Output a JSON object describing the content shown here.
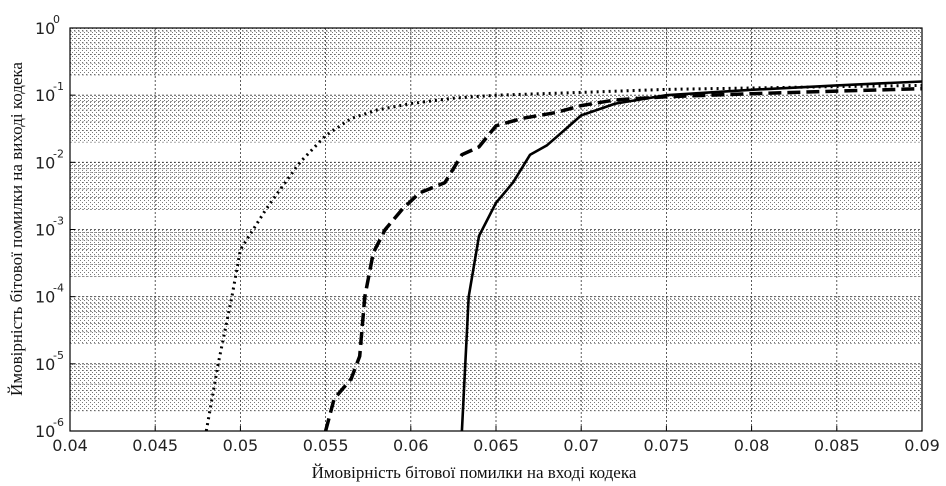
{
  "chart_data": {
    "type": "line",
    "xlabel": "Ймовірність бітової помилки на вході кодека",
    "ylabel": "Ймовірність бітової помилки на виході кодека",
    "xlim": [
      0.04,
      0.09
    ],
    "ylim": [
      1e-06,
      1
    ],
    "yscale": "log",
    "grid": true,
    "x_ticks": [
      "0.04",
      "0.045",
      "0.05",
      "0.055",
      "0.06",
      "0.065",
      "0.07",
      "0.075",
      "0.08",
      "0.085",
      "0.09"
    ],
    "y_tick_base": "10",
    "y_tick_exponents": [
      "-6",
      "-5",
      "-4",
      "-3",
      "-2",
      "-1",
      "0"
    ],
    "series": [
      {
        "style": "dotted",
        "color": "#000000",
        "points": [
          [
            0.048,
            1e-06
          ],
          [
            0.0487,
            1e-05
          ],
          [
            0.0495,
            0.0001
          ],
          [
            0.05,
            0.0005
          ],
          [
            0.0515,
            0.002
          ],
          [
            0.0525,
            0.0045
          ],
          [
            0.0535,
            0.01
          ],
          [
            0.055,
            0.025
          ],
          [
            0.0565,
            0.045
          ],
          [
            0.058,
            0.06
          ],
          [
            0.06,
            0.075
          ],
          [
            0.0625,
            0.09
          ],
          [
            0.065,
            0.1
          ],
          [
            0.07,
            0.11
          ],
          [
            0.075,
            0.122
          ],
          [
            0.08,
            0.128
          ],
          [
            0.085,
            0.134
          ],
          [
            0.09,
            0.14
          ]
        ]
      },
      {
        "style": "dashed",
        "color": "#000000",
        "points": [
          [
            0.055,
            1e-06
          ],
          [
            0.0555,
            3e-06
          ],
          [
            0.0565,
            6e-06
          ],
          [
            0.057,
            1.3e-05
          ],
          [
            0.0573,
            0.0001
          ],
          [
            0.0578,
            0.00045
          ],
          [
            0.0585,
            0.001
          ],
          [
            0.0595,
            0.002
          ],
          [
            0.0605,
            0.0035
          ],
          [
            0.062,
            0.005
          ],
          [
            0.063,
            0.013
          ],
          [
            0.064,
            0.017
          ],
          [
            0.065,
            0.035
          ],
          [
            0.0665,
            0.045
          ],
          [
            0.0685,
            0.055
          ],
          [
            0.07,
            0.07
          ],
          [
            0.072,
            0.085
          ],
          [
            0.075,
            0.095
          ],
          [
            0.08,
            0.105
          ],
          [
            0.085,
            0.115
          ],
          [
            0.09,
            0.125
          ]
        ]
      },
      {
        "style": "solid",
        "color": "#000000",
        "points": [
          [
            0.063,
            1e-06
          ],
          [
            0.0634,
            0.0001
          ],
          [
            0.064,
            0.0008
          ],
          [
            0.065,
            0.0025
          ],
          [
            0.066,
            0.005
          ],
          [
            0.067,
            0.013
          ],
          [
            0.068,
            0.018
          ],
          [
            0.069,
            0.03
          ],
          [
            0.07,
            0.05
          ],
          [
            0.072,
            0.075
          ],
          [
            0.075,
            0.1
          ],
          [
            0.08,
            0.12
          ],
          [
            0.085,
            0.14
          ],
          [
            0.09,
            0.16
          ]
        ]
      }
    ]
  }
}
